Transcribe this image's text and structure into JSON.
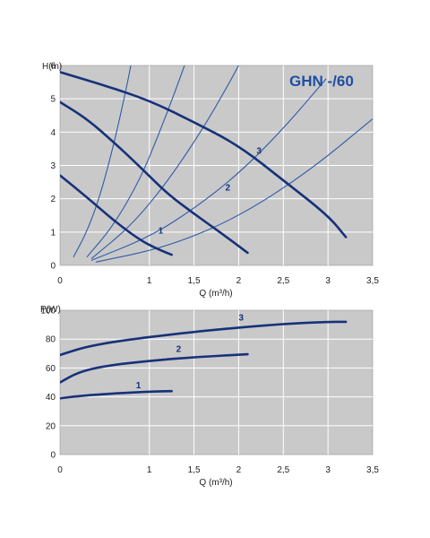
{
  "chart_data": [
    {
      "type": "line",
      "title": "GHN -/60",
      "xlabel": "Q (m³/h)",
      "ylabel": "H(m)",
      "xlim": [
        0,
        3.5
      ],
      "ylim": [
        0,
        6.0
      ],
      "grid": true,
      "x_ticks": [
        "0",
        "1",
        "1,5",
        "2",
        "2,5",
        "3",
        "3,5"
      ],
      "y_ticks": [
        "0",
        "1",
        "2",
        "3",
        "4",
        "5",
        "6"
      ],
      "series": [
        {
          "name": "1",
          "label_at": [
            1.1,
            0.95
          ],
          "points": [
            [
              0.0,
              2.7
            ],
            [
              0.3,
              2.05
            ],
            [
              0.6,
              1.35
            ],
            [
              0.9,
              0.75
            ],
            [
              1.1,
              0.48
            ],
            [
              1.25,
              0.32
            ]
          ]
        },
        {
          "name": "2",
          "label_at": [
            1.85,
            2.25
          ],
          "points": [
            [
              0.0,
              4.9
            ],
            [
              0.3,
              4.4
            ],
            [
              0.6,
              3.7
            ],
            [
              0.9,
              2.95
            ],
            [
              1.2,
              2.15
            ],
            [
              1.5,
              1.55
            ],
            [
              1.8,
              0.98
            ],
            [
              2.1,
              0.38
            ]
          ]
        },
        {
          "name": "3",
          "label_at": [
            2.2,
            3.35
          ],
          "points": [
            [
              0.0,
              5.8
            ],
            [
              0.5,
              5.4
            ],
            [
              1.0,
              4.95
            ],
            [
              1.5,
              4.3
            ],
            [
              2.0,
              3.6
            ],
            [
              2.5,
              2.55
            ],
            [
              3.0,
              1.5
            ],
            [
              3.2,
              0.85
            ]
          ]
        }
      ],
      "system_curves": [
        [
          [
            0.15,
            0.25
          ],
          [
            0.3,
            1.0
          ],
          [
            0.45,
            2.1
          ],
          [
            0.6,
            3.6
          ],
          [
            0.75,
            5.4
          ],
          [
            0.82,
            6.4
          ]
        ],
        [
          [
            0.3,
            0.25
          ],
          [
            0.6,
            1.2
          ],
          [
            0.9,
            2.6
          ],
          [
            1.1,
            3.9
          ],
          [
            1.3,
            5.3
          ],
          [
            1.42,
            6.2
          ]
        ],
        [
          [
            0.35,
            0.2
          ],
          [
            0.8,
            1.2
          ],
          [
            1.2,
            2.5
          ],
          [
            1.6,
            4.1
          ],
          [
            1.9,
            5.5
          ],
          [
            2.02,
            6.1
          ]
        ],
        [
          [
            0.35,
            0.15
          ],
          [
            1.0,
            0.85
          ],
          [
            1.5,
            1.7
          ],
          [
            2.0,
            2.75
          ],
          [
            2.5,
            4.1
          ],
          [
            2.98,
            5.6
          ]
        ],
        [
          [
            0.4,
            0.1
          ],
          [
            1.2,
            0.55
          ],
          [
            2.0,
            1.45
          ],
          [
            2.8,
            2.85
          ],
          [
            3.5,
            4.4
          ]
        ]
      ]
    },
    {
      "type": "line",
      "title": "",
      "xlabel": "Q (m³/h)",
      "ylabel": "P(W)",
      "xlim": [
        0,
        3.5
      ],
      "ylim": [
        0,
        100
      ],
      "grid": true,
      "x_ticks": [
        "0",
        "1",
        "1,5",
        "2",
        "2,5",
        "3",
        "3,5"
      ],
      "y_ticks": [
        "0",
        "20",
        "40",
        "60",
        "80",
        "100"
      ],
      "series": [
        {
          "name": "1",
          "label_at": [
            0.85,
            46
          ],
          "points": [
            [
              0.0,
              39
            ],
            [
              0.2,
              40.5
            ],
            [
              0.5,
              42
            ],
            [
              0.8,
              43
            ],
            [
              1.1,
              43.8
            ],
            [
              1.25,
              44
            ]
          ]
        },
        {
          "name": "2",
          "label_at": [
            1.3,
            71
          ],
          "points": [
            [
              0.0,
              50
            ],
            [
              0.2,
              57
            ],
            [
              0.5,
              61.5
            ],
            [
              1.0,
              65
            ],
            [
              1.5,
              67.5
            ],
            [
              2.0,
              69.2
            ],
            [
              2.1,
              69.5
            ]
          ]
        },
        {
          "name": "3",
          "label_at": [
            2.0,
            93
          ],
          "points": [
            [
              0.0,
              69
            ],
            [
              0.3,
              75
            ],
            [
              0.8,
              80
            ],
            [
              1.5,
              85
            ],
            [
              2.0,
              88
            ],
            [
              2.5,
              90.5
            ],
            [
              3.0,
              92
            ],
            [
              3.2,
              92
            ]
          ]
        }
      ]
    }
  ],
  "colors": {
    "plot_bg": "#c9c9c9",
    "grid": "#ffffff",
    "pump_curve": "#17317a",
    "system_curve": "#2f5aa8",
    "model_text": "#1f4fa0"
  }
}
